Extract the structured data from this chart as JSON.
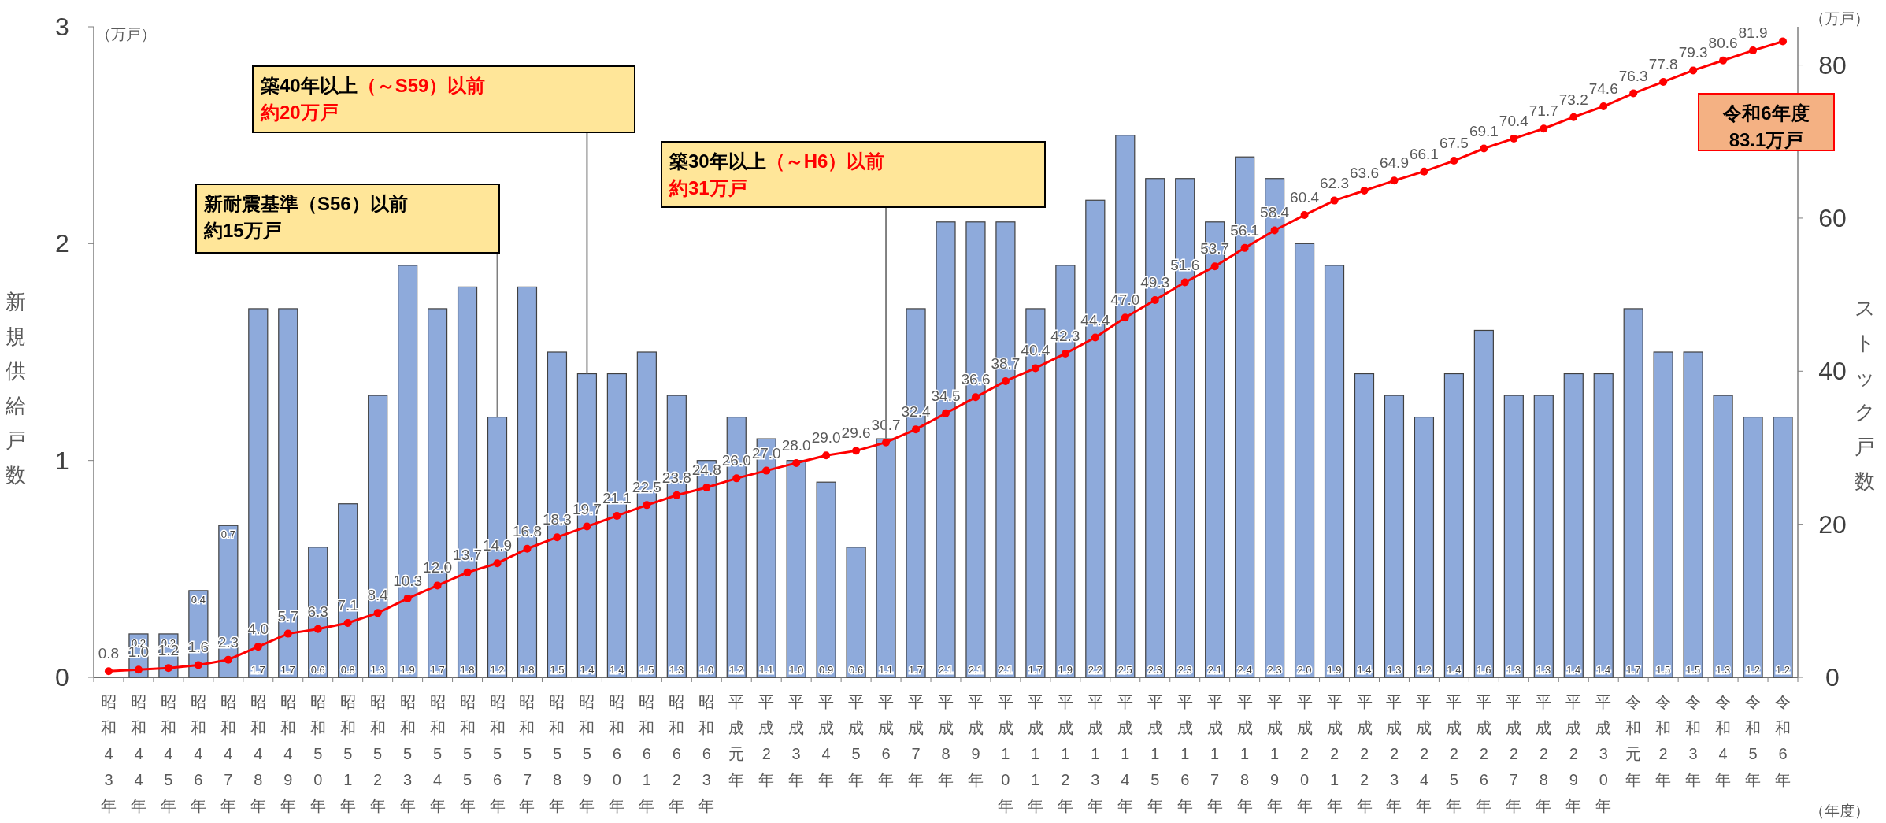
{
  "chart_data": {
    "type": "bar",
    "categories": [
      "昭和43年",
      "昭和44年",
      "昭和45年",
      "昭和46年",
      "昭和47年",
      "昭和48年",
      "昭和49年",
      "昭和50年",
      "昭和51年",
      "昭和52年",
      "昭和53年",
      "昭和54年",
      "昭和55年",
      "昭和56年",
      "昭和57年",
      "昭和58年",
      "昭和59年",
      "昭和60年",
      "昭和61年",
      "昭和62年",
      "昭和63年",
      "平成元年",
      "平成2年",
      "平成3年",
      "平成4年",
      "平成5年",
      "平成6年",
      "平成7年",
      "平成8年",
      "平成9年",
      "平成10年",
      "平成11年",
      "平成12年",
      "平成13年",
      "平成14年",
      "平成15年",
      "平成16年",
      "平成17年",
      "平成18年",
      "平成19年",
      "平成20年",
      "平成21年",
      "平成22年",
      "平成23年",
      "平成24年",
      "平成25年",
      "平成26年",
      "平成27年",
      "平成28年",
      "平成29年",
      "平成30年",
      "令和元年",
      "令和2年",
      "令和3年",
      "令和4年",
      "令和5年",
      "令和6年"
    ],
    "series": [
      {
        "color": "#8eaadb",
        "values": [
          null,
          0.2,
          0.2,
          0.4,
          0.7,
          1.7,
          1.7,
          0.6,
          0.8,
          1.3,
          1.9,
          1.7,
          1.8,
          1.2,
          1.8,
          1.5,
          1.4,
          1.4,
          1.5,
          1.3,
          1.0,
          1.2,
          1.1,
          1.0,
          0.9,
          0.6,
          1.1,
          1.7,
          2.1,
          2.1,
          2.1,
          1.7,
          1.9,
          2.2,
          2.5,
          2.3,
          2.3,
          2.1,
          2.4,
          2.3,
          2.0,
          1.9,
          1.4,
          1.3,
          1.2,
          1.4,
          1.6,
          1.3,
          1.3,
          1.4,
          1.4,
          1.7,
          1.5,
          1.5,
          1.3,
          1.2,
          1.2
        ],
        "value_labels": [
          null,
          "0.2",
          "0.2",
          "0.4",
          "0.7",
          "1.7",
          "1.7",
          "0.6",
          "0.8",
          "1.3",
          "1.9",
          "1.7",
          "1.8",
          "1.2",
          "1.8",
          "1.5",
          "1.4",
          "1.4",
          "1.5",
          "1.3",
          "1.0",
          "1.2",
          "1.1",
          "1.0",
          "0.9",
          "0.6",
          "1.1",
          "1.7",
          "2.1",
          "2.1",
          "2.1",
          "1.7",
          "1.9",
          "2.2",
          "2.5",
          "2.3",
          "2.3",
          "2.1",
          "2.4",
          "2.3",
          "2.0",
          "1.9",
          "1.4",
          "1.3",
          "1.2",
          "1.4",
          "1.6",
          "1.3",
          "1.3",
          "1.4",
          "1.4",
          "1.7",
          "1.5",
          "1.5",
          "1.3",
          "1.2",
          "1.2"
        ]
      },
      {
        "type": "line",
        "axis": "y2",
        "color": "#ff0000",
        "marker": "circle",
        "values": [
          0.8,
          1.0,
          1.2,
          1.6,
          2.3,
          4.0,
          5.7,
          6.3,
          7.1,
          8.4,
          10.3,
          12.0,
          13.7,
          14.9,
          16.8,
          18.3,
          19.7,
          21.1,
          22.5,
          23.8,
          24.8,
          26.0,
          27.0,
          28.0,
          29.0,
          29.6,
          30.7,
          32.4,
          34.5,
          36.6,
          38.7,
          40.4,
          42.3,
          44.4,
          47.0,
          49.3,
          51.6,
          53.7,
          56.1,
          58.4,
          60.4,
          62.3,
          63.6,
          64.9,
          66.1,
          67.5,
          69.1,
          70.4,
          71.7,
          73.2,
          74.6,
          76.3,
          77.8,
          79.3,
          80.6,
          81.9,
          83.1
        ],
        "value_labels": [
          "0.8",
          "1.0",
          "1.2",
          "1.6",
          "2.3",
          "4.0",
          "5.7",
          "6.3",
          "7.1",
          "8.4",
          "10.3",
          "12.0",
          "13.7",
          "14.9",
          "16.8",
          "18.3",
          "19.7",
          "21.1",
          "22.5",
          "23.8",
          "24.8",
          "26.0",
          "27.0",
          "28.0",
          "29.0",
          "29.6",
          "30.7",
          "32.4",
          "34.5",
          "36.6",
          "38.7",
          "40.4",
          "42.3",
          "44.4",
          "47.0",
          "49.3",
          "51.6",
          "53.7",
          "56.1",
          "58.4",
          "60.4",
          "62.3",
          "63.6",
          "64.9",
          "66.1",
          "67.5",
          "69.1",
          "70.4",
          "71.7",
          "73.2",
          "74.6",
          "76.3",
          "77.8",
          "79.3",
          "80.6",
          "81.9",
          null
        ]
      }
    ],
    "ylabel": "新規供給戸数",
    "y2label": "ストック戸数",
    "ylim": [
      0,
      3
    ],
    "yticks": [
      0,
      1,
      2,
      3
    ],
    "y2lim": [
      0,
      85
    ],
    "y2ticks": [
      0,
      20,
      40,
      60,
      80
    ],
    "annotations": [
      "新耐震基準（S56）以前",
      "約15万戸",
      "築40年以上",
      "（～S59）以前",
      "約20万戸",
      "築30年以上",
      "（～H6）以前",
      "約31万戸",
      "令和6年度",
      "83.1万戸",
      "（万戸）",
      "（万戸）",
      "（年度）"
    ]
  }
}
